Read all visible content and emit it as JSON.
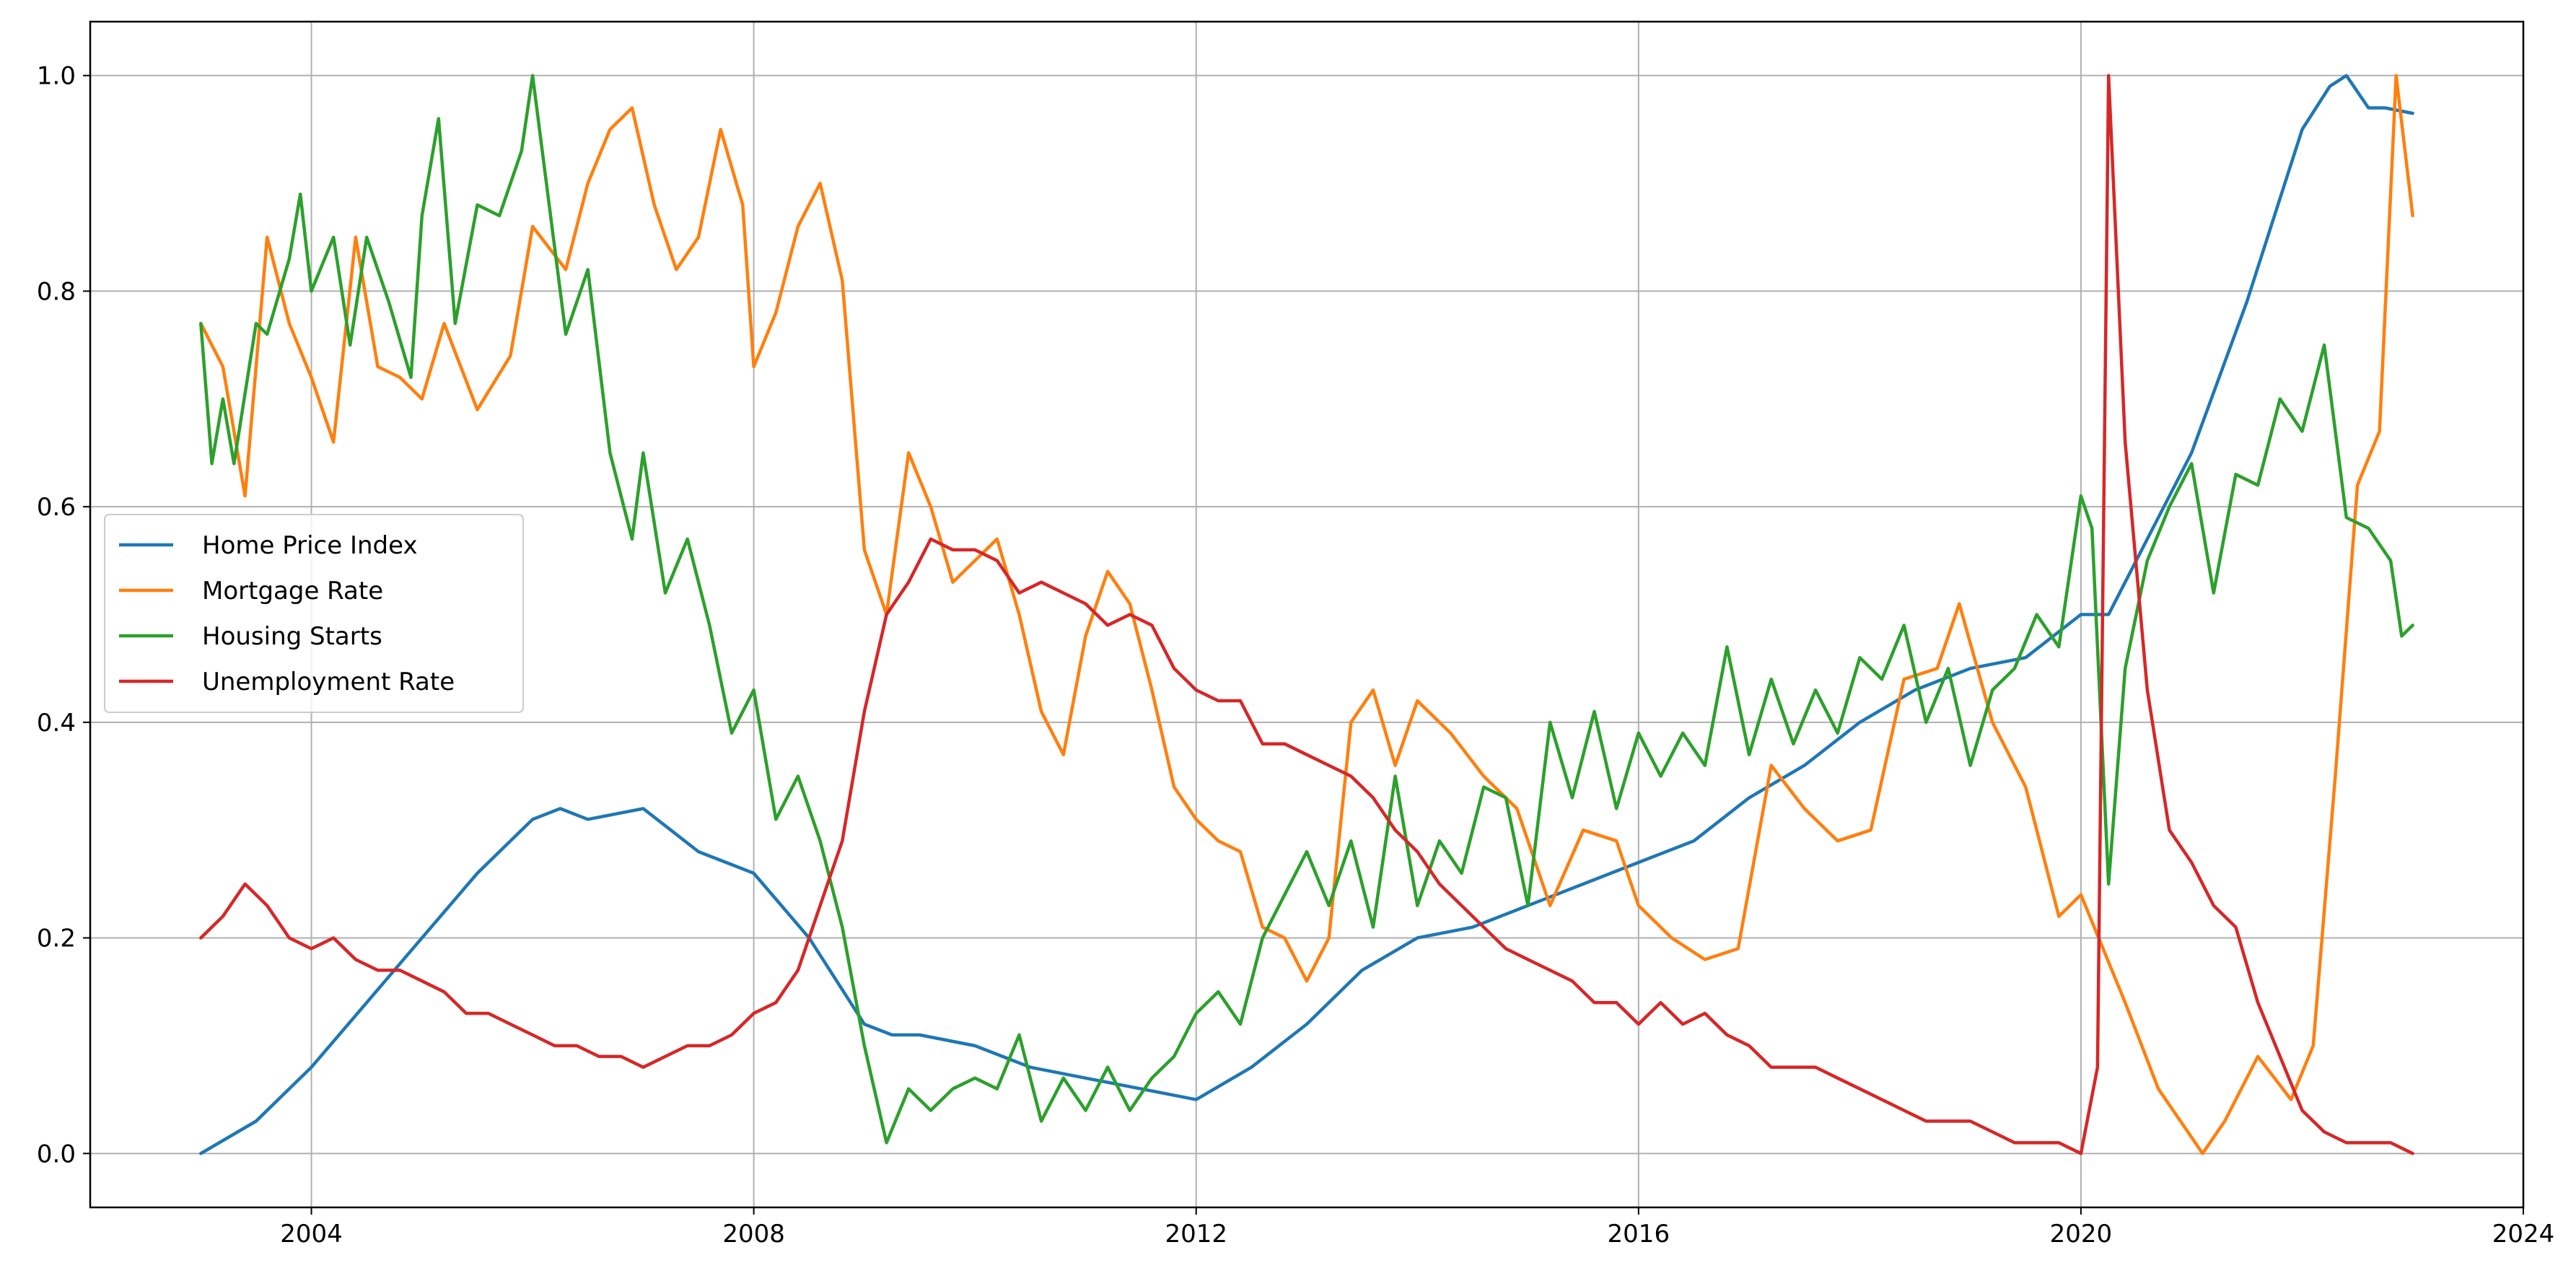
{
  "chart_data": {
    "type": "line",
    "title": "",
    "xlabel": "",
    "ylabel": "",
    "xlim": [
      2002.0,
      2024.0
    ],
    "ylim": [
      -0.05,
      1.05
    ],
    "xticks": [
      2004,
      2008,
      2012,
      2016,
      2020,
      2024
    ],
    "xtick_labels": [
      "2004",
      "2008",
      "2012",
      "2016",
      "2020",
      "2024"
    ],
    "yticks": [
      0.0,
      0.2,
      0.4,
      0.6,
      0.8,
      1.0
    ],
    "ytick_labels": [
      "0.0",
      "0.2",
      "0.4",
      "0.6",
      "0.8",
      "1.0"
    ],
    "grid": true,
    "legend_position": "center-left",
    "series": [
      {
        "name": "Home Price Index",
        "color": "#1f77b4",
        "x": [
          2003.0,
          2003.5,
          2004.0,
          2004.5,
          2005.0,
          2005.5,
          2006.0,
          2006.25,
          2006.5,
          2007.0,
          2007.25,
          2007.5,
          2008.0,
          2008.5,
          2009.0,
          2009.25,
          2009.5,
          2010.0,
          2010.5,
          2011.0,
          2011.5,
          2012.0,
          2012.5,
          2013.0,
          2013.5,
          2014.0,
          2014.5,
          2015.0,
          2015.5,
          2016.0,
          2016.5,
          2017.0,
          2017.5,
          2018.0,
          2018.5,
          2019.0,
          2019.5,
          2020.0,
          2020.25,
          2020.5,
          2020.75,
          2021.0,
          2021.25,
          2021.5,
          2021.75,
          2022.0,
          2022.25,
          2022.4,
          2022.6,
          2022.75,
          2023.0
        ],
        "values": [
          0.0,
          0.03,
          0.08,
          0.14,
          0.2,
          0.26,
          0.31,
          0.32,
          0.31,
          0.32,
          0.3,
          0.28,
          0.26,
          0.2,
          0.12,
          0.11,
          0.11,
          0.1,
          0.08,
          0.07,
          0.06,
          0.05,
          0.08,
          0.12,
          0.17,
          0.2,
          0.21,
          0.23,
          0.25,
          0.27,
          0.29,
          0.33,
          0.36,
          0.4,
          0.43,
          0.45,
          0.46,
          0.5,
          0.5,
          0.55,
          0.6,
          0.65,
          0.72,
          0.79,
          0.87,
          0.95,
          0.99,
          1.0,
          0.97,
          0.97,
          0.965
        ]
      },
      {
        "name": "Mortgage Rate",
        "color": "#ff7f0e",
        "x": [
          2003.0,
          2003.2,
          2003.4,
          2003.6,
          2003.8,
          2004.0,
          2004.2,
          2004.4,
          2004.6,
          2004.8,
          2005.0,
          2005.2,
          2005.5,
          2005.8,
          2006.0,
          2006.3,
          2006.5,
          2006.7,
          2006.9,
          2007.1,
          2007.3,
          2007.5,
          2007.7,
          2007.9,
          2008.0,
          2008.2,
          2008.4,
          2008.6,
          2008.8,
          2009.0,
          2009.2,
          2009.4,
          2009.6,
          2009.8,
          2010.0,
          2010.2,
          2010.4,
          2010.6,
          2010.8,
          2011.0,
          2011.2,
          2011.4,
          2011.6,
          2011.8,
          2012.0,
          2012.2,
          2012.4,
          2012.6,
          2012.8,
          2013.0,
          2013.2,
          2013.4,
          2013.6,
          2013.8,
          2014.0,
          2014.3,
          2014.6,
          2014.9,
          2015.2,
          2015.5,
          2015.8,
          2016.0,
          2016.3,
          2016.6,
          2016.9,
          2017.2,
          2017.5,
          2017.8,
          2018.1,
          2018.4,
          2018.7,
          2018.9,
          2019.2,
          2019.5,
          2019.8,
          2020.0,
          2020.2,
          2020.4,
          2020.7,
          2020.9,
          2021.1,
          2021.3,
          2021.6,
          2021.9,
          2022.1,
          2022.3,
          2022.5,
          2022.7,
          2022.85,
          2023.0
        ],
        "values": [
          0.77,
          0.73,
          0.61,
          0.85,
          0.77,
          0.72,
          0.66,
          0.85,
          0.73,
          0.72,
          0.7,
          0.77,
          0.69,
          0.74,
          0.86,
          0.82,
          0.9,
          0.95,
          0.97,
          0.88,
          0.82,
          0.85,
          0.95,
          0.88,
          0.73,
          0.78,
          0.86,
          0.9,
          0.81,
          0.56,
          0.5,
          0.65,
          0.6,
          0.53,
          0.55,
          0.57,
          0.5,
          0.41,
          0.37,
          0.48,
          0.54,
          0.51,
          0.43,
          0.34,
          0.31,
          0.29,
          0.28,
          0.21,
          0.2,
          0.16,
          0.2,
          0.4,
          0.43,
          0.36,
          0.42,
          0.39,
          0.35,
          0.32,
          0.23,
          0.3,
          0.29,
          0.23,
          0.2,
          0.18,
          0.19,
          0.36,
          0.32,
          0.29,
          0.3,
          0.44,
          0.45,
          0.51,
          0.4,
          0.34,
          0.22,
          0.24,
          0.19,
          0.14,
          0.06,
          0.03,
          0.0,
          0.03,
          0.09,
          0.05,
          0.1,
          0.35,
          0.62,
          0.67,
          1.0,
          0.87
        ]
      },
      {
        "name": "Housing Starts",
        "color": "#2ca02c",
        "x": [
          2003.0,
          2003.1,
          2003.2,
          2003.3,
          2003.5,
          2003.6,
          2003.8,
          2003.9,
          2004.0,
          2004.2,
          2004.35,
          2004.5,
          2004.7,
          2004.9,
          2005.0,
          2005.15,
          2005.3,
          2005.5,
          2005.7,
          2005.9,
          2006.0,
          2006.15,
          2006.3,
          2006.5,
          2006.7,
          2006.9,
          2007.0,
          2007.2,
          2007.4,
          2007.6,
          2007.8,
          2008.0,
          2008.2,
          2008.4,
          2008.6,
          2008.8,
          2009.0,
          2009.2,
          2009.4,
          2009.6,
          2009.8,
          2010.0,
          2010.2,
          2010.4,
          2010.6,
          2010.8,
          2011.0,
          2011.2,
          2011.4,
          2011.6,
          2011.8,
          2012.0,
          2012.2,
          2012.4,
          2012.6,
          2012.8,
          2013.0,
          2013.2,
          2013.4,
          2013.6,
          2013.8,
          2014.0,
          2014.2,
          2014.4,
          2014.6,
          2014.8,
          2015.0,
          2015.2,
          2015.4,
          2015.6,
          2015.8,
          2016.0,
          2016.2,
          2016.4,
          2016.6,
          2016.8,
          2017.0,
          2017.2,
          2017.4,
          2017.6,
          2017.8,
          2018.0,
          2018.2,
          2018.4,
          2018.6,
          2018.8,
          2019.0,
          2019.2,
          2019.4,
          2019.6,
          2019.8,
          2020.0,
          2020.1,
          2020.25,
          2020.4,
          2020.6,
          2020.8,
          2021.0,
          2021.2,
          2021.4,
          2021.6,
          2021.8,
          2022.0,
          2022.2,
          2022.4,
          2022.6,
          2022.8,
          2022.9,
          2023.0
        ],
        "values": [
          0.77,
          0.64,
          0.7,
          0.64,
          0.77,
          0.76,
          0.83,
          0.89,
          0.8,
          0.85,
          0.75,
          0.85,
          0.79,
          0.72,
          0.87,
          0.96,
          0.77,
          0.88,
          0.87,
          0.93,
          1.0,
          0.88,
          0.76,
          0.82,
          0.65,
          0.57,
          0.65,
          0.52,
          0.57,
          0.49,
          0.39,
          0.43,
          0.31,
          0.35,
          0.29,
          0.21,
          0.1,
          0.01,
          0.06,
          0.04,
          0.06,
          0.07,
          0.06,
          0.11,
          0.03,
          0.07,
          0.04,
          0.08,
          0.04,
          0.07,
          0.09,
          0.13,
          0.15,
          0.12,
          0.2,
          0.24,
          0.28,
          0.23,
          0.29,
          0.21,
          0.35,
          0.23,
          0.29,
          0.26,
          0.34,
          0.33,
          0.23,
          0.4,
          0.33,
          0.41,
          0.32,
          0.39,
          0.35,
          0.39,
          0.36,
          0.47,
          0.37,
          0.44,
          0.38,
          0.43,
          0.39,
          0.46,
          0.44,
          0.49,
          0.4,
          0.45,
          0.36,
          0.43,
          0.45,
          0.5,
          0.47,
          0.61,
          0.58,
          0.25,
          0.45,
          0.55,
          0.6,
          0.64,
          0.52,
          0.63,
          0.62,
          0.7,
          0.67,
          0.75,
          0.59,
          0.58,
          0.55,
          0.48,
          0.49
        ]
      },
      {
        "name": "Unemployment Rate",
        "color": "#d62728",
        "x": [
          2003.0,
          2003.2,
          2003.4,
          2003.6,
          2003.8,
          2004.0,
          2004.2,
          2004.4,
          2004.6,
          2004.8,
          2005.0,
          2005.2,
          2005.4,
          2005.6,
          2005.8,
          2006.0,
          2006.2,
          2006.4,
          2006.6,
          2006.8,
          2007.0,
          2007.2,
          2007.4,
          2007.6,
          2007.8,
          2008.0,
          2008.2,
          2008.4,
          2008.6,
          2008.8,
          2009.0,
          2009.2,
          2009.4,
          2009.6,
          2009.8,
          2010.0,
          2010.2,
          2010.4,
          2010.6,
          2010.8,
          2011.0,
          2011.2,
          2011.4,
          2011.6,
          2011.8,
          2012.0,
          2012.2,
          2012.4,
          2012.6,
          2012.8,
          2013.0,
          2013.2,
          2013.4,
          2013.6,
          2013.8,
          2014.0,
          2014.2,
          2014.4,
          2014.6,
          2014.8,
          2015.0,
          2015.2,
          2015.4,
          2015.6,
          2015.8,
          2016.0,
          2016.2,
          2016.4,
          2016.6,
          2016.8,
          2017.0,
          2017.2,
          2017.4,
          2017.6,
          2017.8,
          2018.0,
          2018.2,
          2018.4,
          2018.6,
          2018.8,
          2019.0,
          2019.2,
          2019.4,
          2019.6,
          2019.8,
          2020.0,
          2020.15,
          2020.25,
          2020.4,
          2020.6,
          2020.8,
          2021.0,
          2021.2,
          2021.4,
          2021.6,
          2021.8,
          2022.0,
          2022.2,
          2022.4,
          2022.6,
          2022.8,
          2023.0
        ],
        "values": [
          0.2,
          0.22,
          0.25,
          0.23,
          0.2,
          0.19,
          0.2,
          0.18,
          0.17,
          0.17,
          0.16,
          0.15,
          0.13,
          0.13,
          0.12,
          0.11,
          0.1,
          0.1,
          0.09,
          0.09,
          0.08,
          0.09,
          0.1,
          0.1,
          0.11,
          0.13,
          0.14,
          0.17,
          0.23,
          0.29,
          0.41,
          0.5,
          0.53,
          0.57,
          0.56,
          0.56,
          0.55,
          0.52,
          0.53,
          0.52,
          0.51,
          0.49,
          0.5,
          0.49,
          0.45,
          0.43,
          0.42,
          0.42,
          0.38,
          0.38,
          0.37,
          0.36,
          0.35,
          0.33,
          0.3,
          0.28,
          0.25,
          0.23,
          0.21,
          0.19,
          0.18,
          0.17,
          0.16,
          0.14,
          0.14,
          0.12,
          0.14,
          0.12,
          0.13,
          0.11,
          0.1,
          0.08,
          0.08,
          0.08,
          0.07,
          0.06,
          0.05,
          0.04,
          0.03,
          0.03,
          0.03,
          0.02,
          0.01,
          0.01,
          0.01,
          0.0,
          0.08,
          1.0,
          0.66,
          0.43,
          0.3,
          0.27,
          0.23,
          0.21,
          0.14,
          0.09,
          0.04,
          0.02,
          0.01,
          0.01,
          0.01,
          0.0
        ]
      }
    ]
  }
}
